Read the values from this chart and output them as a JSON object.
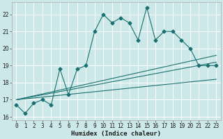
{
  "xlabel": "Humidex (Indice chaleur)",
  "background_color": "#cde8e8",
  "grid_color": "#ffffff",
  "line_color": "#1a7070",
  "xlim": [
    -0.5,
    23.5
  ],
  "ylim": [
    15.8,
    22.7
  ],
  "yticks": [
    16,
    17,
    18,
    19,
    20,
    21,
    22
  ],
  "xticks": [
    0,
    1,
    2,
    3,
    4,
    5,
    6,
    7,
    8,
    9,
    10,
    11,
    12,
    13,
    14,
    15,
    16,
    17,
    18,
    19,
    20,
    21,
    22,
    23
  ],
  "series1_x": [
    0,
    1,
    2,
    3,
    4,
    5,
    6,
    7,
    8,
    9,
    10,
    11,
    12,
    13,
    14,
    15,
    16,
    17,
    18,
    19,
    20,
    21,
    22,
    23
  ],
  "series1_y": [
    16.7,
    16.2,
    16.8,
    17.0,
    16.7,
    18.8,
    17.3,
    18.8,
    19.0,
    21.0,
    22.0,
    21.5,
    21.8,
    21.5,
    20.5,
    22.4,
    20.5,
    21.0,
    21.0,
    20.5,
    20.0,
    19.0,
    19.0,
    19.0
  ],
  "series2_x": [
    0,
    23
  ],
  "series2_y": [
    17.0,
    19.2
  ],
  "series3_x": [
    0,
    23
  ],
  "series3_y": [
    17.0,
    19.6
  ],
  "series4_x": [
    0,
    23
  ],
  "series4_y": [
    17.0,
    18.2
  ],
  "tick_fontsize": 5.5,
  "xlabel_fontsize": 6.5,
  "marker_size": 2.5,
  "line_width": 0.8
}
